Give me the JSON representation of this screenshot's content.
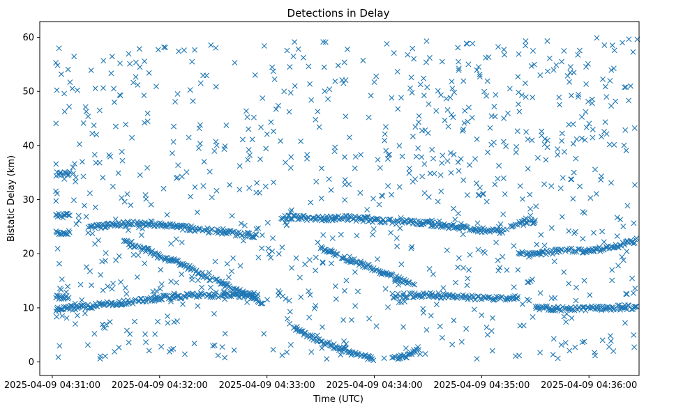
{
  "chart_data": {
    "type": "scatter",
    "title": "Detections in Delay",
    "xlabel": "Time (UTC)",
    "ylabel": "Bistatic Delay (km)",
    "marker": "x",
    "marker_color": "#1f77b4",
    "grid": false,
    "xlim_seconds_from_0430": [
      53,
      388
    ],
    "ylim": [
      -2.5,
      62.9
    ],
    "x_ticks": [
      {
        "seconds_from_0430": 60,
        "label": "2025-04-09 04:31:00"
      },
      {
        "seconds_from_0430": 120,
        "label": "2025-04-09 04:32:00"
      },
      {
        "seconds_from_0430": 180,
        "label": "2025-04-09 04:33:00"
      },
      {
        "seconds_from_0430": 240,
        "label": "2025-04-09 04:34:00"
      },
      {
        "seconds_from_0430": 300,
        "label": "2025-04-09 04:35:00"
      },
      {
        "seconds_from_0430": 360,
        "label": "2025-04-09 04:36:00"
      }
    ],
    "y_ticks": [
      0,
      10,
      20,
      30,
      40,
      50,
      60
    ],
    "data_time_range_seconds_from_0430": [
      62,
      387
    ],
    "tracks": [
      {
        "name": "track-A",
        "t": [
          62,
          70,
          80,
          90,
          100,
          110,
          120,
          130,
          140,
          150,
          160,
          170,
          175
        ],
        "delay": [
          9.8,
          10.0,
          10.3,
          10.7,
          11.0,
          11.4,
          11.8,
          12.1,
          12.3,
          12.4,
          12.4,
          12.3,
          12.2
        ]
      },
      {
        "name": "track-B",
        "t": [
          80,
          90,
          100,
          110,
          120,
          130,
          140,
          150,
          160,
          170,
          175
        ],
        "delay": [
          24.8,
          25.2,
          25.5,
          25.6,
          25.4,
          25.0,
          24.6,
          24.2,
          23.8,
          23.4,
          23.3
        ]
      },
      {
        "name": "track-C",
        "t": [
          100,
          110,
          120,
          130,
          140,
          150,
          160,
          170,
          178
        ],
        "delay": [
          22.5,
          21.0,
          19.5,
          18.5,
          16.8,
          15.2,
          13.8,
          12.4,
          11.0
        ]
      },
      {
        "name": "track-D",
        "t": [
          188,
          200,
          210,
          220,
          230,
          240,
          250,
          260,
          270,
          280,
          290,
          300,
          310,
          320,
          330
        ],
        "delay": [
          26.8,
          26.6,
          26.5,
          26.6,
          26.5,
          26.2,
          25.9,
          25.8,
          25.6,
          25.2,
          24.8,
          24.4,
          24.0,
          25.6,
          26.0
        ]
      },
      {
        "name": "track-E",
        "t": [
          210,
          220,
          230,
          240,
          250,
          260
        ],
        "delay": [
          21.0,
          19.6,
          18.5,
          17.2,
          15.8,
          14.5
        ]
      },
      {
        "name": "track-F",
        "t": [
          195,
          205,
          215,
          225,
          235,
          240
        ],
        "delay": [
          6.5,
          4.5,
          3.2,
          2.0,
          1.0,
          0.6
        ]
      },
      {
        "name": "track-G",
        "t": [
          250,
          255,
          260,
          265
        ],
        "delay": [
          0.6,
          0.8,
          1.4,
          2.6
        ]
      },
      {
        "name": "track-H",
        "t": [
          250,
          260,
          270,
          280,
          290,
          300,
          310,
          320
        ],
        "delay": [
          12.2,
          12.3,
          12.4,
          12.2,
          12.0,
          11.8,
          11.7,
          11.9
        ]
      },
      {
        "name": "track-I",
        "t": [
          320,
          330,
          340,
          350,
          360,
          370,
          380,
          387
        ],
        "delay": [
          20.0,
          20.1,
          20.3,
          20.6,
          20.5,
          21.0,
          21.8,
          22.5
        ]
      },
      {
        "name": "track-J",
        "t": [
          62,
          66,
          70
        ],
        "delay": [
          34.8,
          34.8,
          34.8
        ]
      },
      {
        "name": "track-K",
        "t": [
          62,
          66,
          70
        ],
        "delay": [
          27.0,
          27.0,
          27.0
        ]
      },
      {
        "name": "track-L",
        "t": [
          62,
          66,
          70
        ],
        "delay": [
          23.8,
          23.8,
          23.8
        ]
      },
      {
        "name": "track-M",
        "t": [
          62,
          66,
          70
        ],
        "delay": [
          12.0,
          12.0,
          12.0
        ]
      },
      {
        "name": "track-N",
        "t": [
          330,
          340,
          350,
          360,
          370,
          380,
          387
        ],
        "delay": [
          10.0,
          9.8,
          9.7,
          9.9,
          10.0,
          10.1,
          10.2
        ]
      }
    ],
    "scatter_noise": {
      "points": 900,
      "delay_range": [
        0.5,
        60
      ],
      "seed": 7
    }
  }
}
